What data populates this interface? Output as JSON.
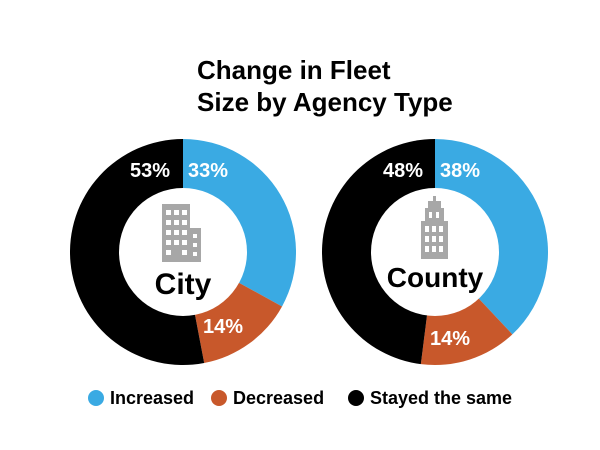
{
  "colors": {
    "increased": "#3aaae3",
    "decreased": "#c8582b",
    "same": "#000000",
    "icon": "#a7a7a7",
    "background": "#ffffff"
  },
  "chart_data": {
    "type": "pie",
    "title": [
      "Change in Fleet",
      "Size by Agency Type"
    ],
    "legend": {
      "position": "bottom",
      "entries": [
        {
          "name": "Increased",
          "color": "#3aaae3"
        },
        {
          "name": "Decreased",
          "color": "#c8582b"
        },
        {
          "name": "Stayed the same",
          "color": "#000000"
        }
      ]
    },
    "charts": [
      {
        "name": "City",
        "icon": "city-building-icon",
        "slices": [
          {
            "category": "Increased",
            "value": 33,
            "label": "33%"
          },
          {
            "category": "Decreased",
            "value": 14,
            "label": "14%"
          },
          {
            "category": "Stayed the same",
            "value": 53,
            "label": "53%"
          }
        ]
      },
      {
        "name": "County",
        "icon": "county-tower-icon",
        "slices": [
          {
            "category": "Increased",
            "value": 38,
            "label": "38%"
          },
          {
            "category": "Decreased",
            "value": 14,
            "label": "14%"
          },
          {
            "category": "Stayed the same",
            "value": 48,
            "label": "48%"
          }
        ]
      }
    ]
  }
}
